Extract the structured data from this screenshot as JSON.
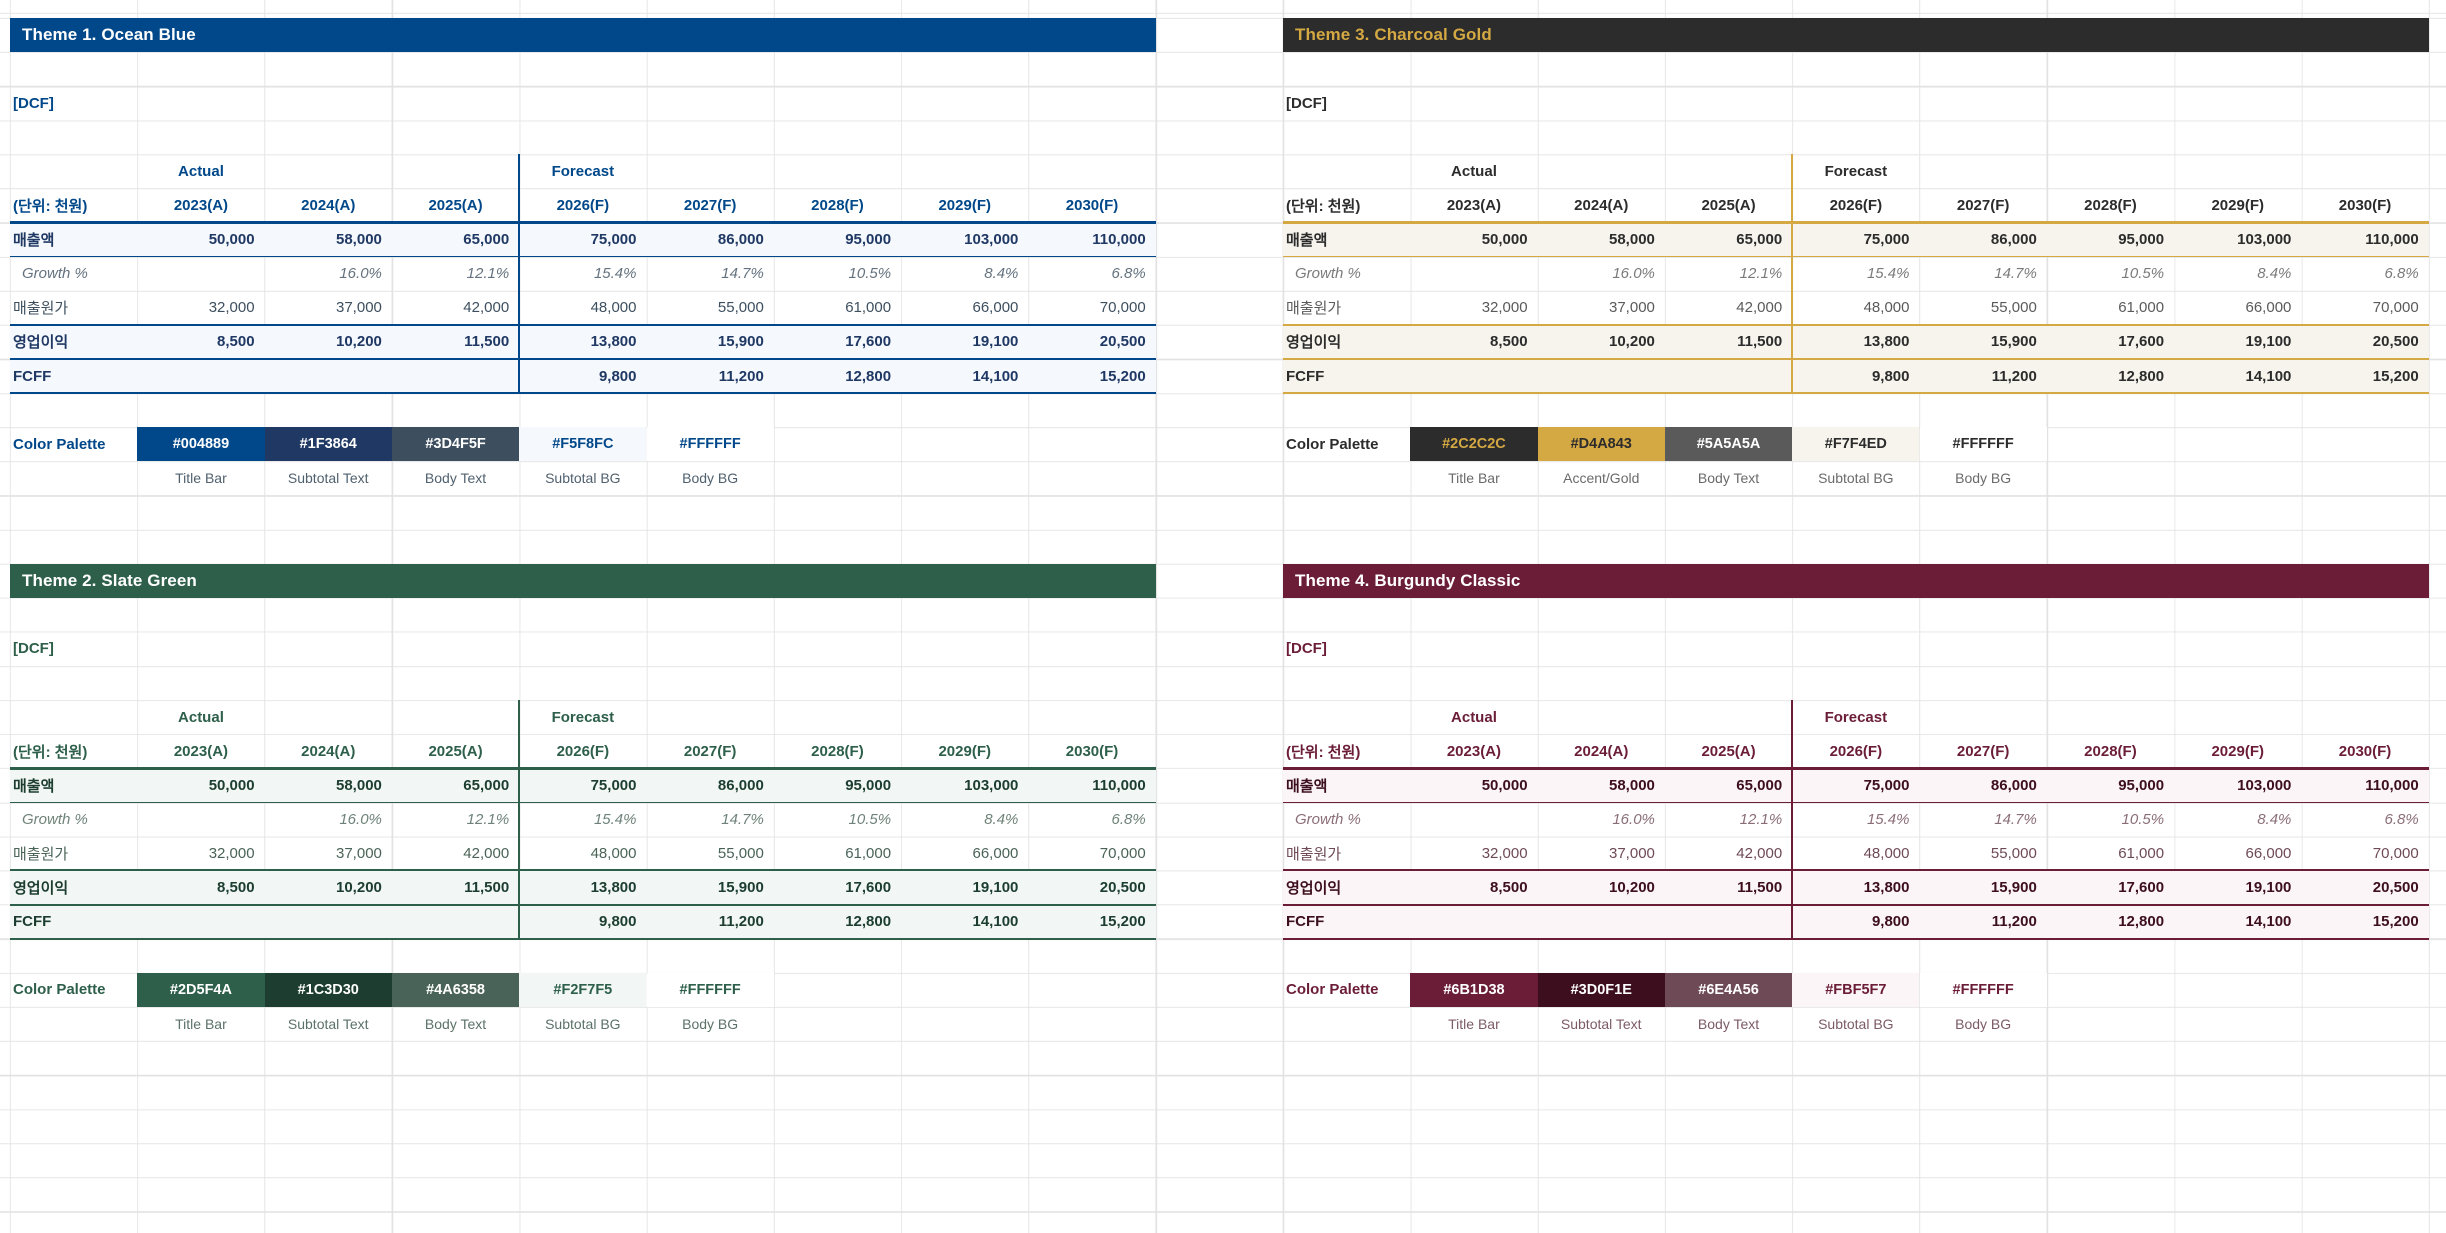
{
  "sheet": {
    "dcf_label": "[DCF]",
    "unit_label": "(단위: 천원)",
    "actual_label": "Actual",
    "forecast_label": "Forecast",
    "year_headers": [
      "2023(A)",
      "2024(A)",
      "2025(A)",
      "2026(F)",
      "2027(F)",
      "2028(F)",
      "2029(F)",
      "2030(F)"
    ],
    "rows": [
      {
        "label": "매출액",
        "type": "subtotal",
        "values": [
          "50,000",
          "58,000",
          "65,000",
          "75,000",
          "86,000",
          "95,000",
          "103,000",
          "110,000"
        ]
      },
      {
        "label": "Growth %",
        "type": "growth",
        "values": [
          "",
          "16.0%",
          "12.1%",
          "15.4%",
          "14.7%",
          "10.5%",
          "8.4%",
          "6.8%"
        ]
      },
      {
        "label": "매출원가",
        "type": "body",
        "values": [
          "32,000",
          "37,000",
          "42,000",
          "48,000",
          "55,000",
          "61,000",
          "66,000",
          "70,000"
        ]
      },
      {
        "label": "영업이익",
        "type": "subtotal",
        "values": [
          "8,500",
          "10,200",
          "11,500",
          "13,800",
          "15,900",
          "17,600",
          "19,100",
          "20,500"
        ]
      },
      {
        "label": "FCFF",
        "type": "subtotal",
        "values": [
          "",
          "",
          "",
          "9,800",
          "11,200",
          "12,800",
          "14,100",
          "15,200"
        ]
      }
    ],
    "palette_caption": "Color Palette"
  },
  "themes": [
    {
      "name": "Theme 1. Ocean Blue",
      "position": "top-left",
      "title_bg": "#004889",
      "title_fg": "#FFFFFF",
      "header_text": "#004889",
      "border": "#004889",
      "subtotal_text": "#1F3864",
      "body_text": "#3D4F5F",
      "subtotal_bg": "#F5F8FC",
      "body_bg": "#FFFFFF",
      "palette": [
        {
          "hex": "#004889",
          "label": "Title Bar",
          "swatch_bg": "#004889",
          "swatch_fg": "#FFFFFF"
        },
        {
          "hex": "#1F3864",
          "label": "Subtotal Text",
          "swatch_bg": "#1F3864",
          "swatch_fg": "#FFFFFF"
        },
        {
          "hex": "#3D4F5F",
          "label": "Body Text",
          "swatch_bg": "#3D4F5F",
          "swatch_fg": "#FFFFFF"
        },
        {
          "hex": "#F5F8FC",
          "label": "Subtotal BG",
          "swatch_bg": "#F5F8FC",
          "swatch_fg": "#004889"
        },
        {
          "hex": "#FFFFFF",
          "label": "Body BG",
          "swatch_bg": "#FFFFFF",
          "swatch_fg": "#004889"
        }
      ]
    },
    {
      "name": "Theme 2. Slate Green",
      "position": "bottom-left",
      "title_bg": "#2D5F4A",
      "title_fg": "#FFFFFF",
      "header_text": "#2D5F4A",
      "border": "#2D5F4A",
      "subtotal_text": "#1C3D30",
      "body_text": "#4A6358",
      "subtotal_bg": "#F2F7F5",
      "body_bg": "#FFFFFF",
      "palette": [
        {
          "hex": "#2D5F4A",
          "label": "Title Bar",
          "swatch_bg": "#2D5F4A",
          "swatch_fg": "#FFFFFF"
        },
        {
          "hex": "#1C3D30",
          "label": "Subtotal Text",
          "swatch_bg": "#1C3D30",
          "swatch_fg": "#FFFFFF"
        },
        {
          "hex": "#4A6358",
          "label": "Body Text",
          "swatch_bg": "#4A6358",
          "swatch_fg": "#FFFFFF"
        },
        {
          "hex": "#F2F7F5",
          "label": "Subtotal BG",
          "swatch_bg": "#F2F7F5",
          "swatch_fg": "#2D5F4A"
        },
        {
          "hex": "#FFFFFF",
          "label": "Body BG",
          "swatch_bg": "#FFFFFF",
          "swatch_fg": "#2D5F4A"
        }
      ]
    },
    {
      "name": "Theme 3. Charcoal Gold",
      "position": "top-right",
      "title_bg": "#2C2C2C",
      "title_fg": "#D4A843",
      "header_text": "#2C2C2C",
      "border": "#D4A843",
      "subtotal_text": "#2C2C2C",
      "body_text": "#5A5A5A",
      "subtotal_bg": "#F7F4ED",
      "body_bg": "#FFFFFF",
      "palette": [
        {
          "hex": "#2C2C2C",
          "label": "Title Bar",
          "swatch_bg": "#2C2C2C",
          "swatch_fg": "#D4A843"
        },
        {
          "hex": "#D4A843",
          "label": "Accent/Gold",
          "swatch_bg": "#D4A843",
          "swatch_fg": "#2C2C2C"
        },
        {
          "hex": "#5A5A5A",
          "label": "Body Text",
          "swatch_bg": "#5A5A5A",
          "swatch_fg": "#FFFFFF"
        },
        {
          "hex": "#F7F4ED",
          "label": "Subtotal BG",
          "swatch_bg": "#F7F4ED",
          "swatch_fg": "#2C2C2C"
        },
        {
          "hex": "#FFFFFF",
          "label": "Body BG",
          "swatch_bg": "#FFFFFF",
          "swatch_fg": "#2C2C2C"
        }
      ]
    },
    {
      "name": "Theme 4. Burgundy Classic",
      "position": "bottom-right",
      "title_bg": "#6B1D38",
      "title_fg": "#FFFFFF",
      "header_text": "#6B1D38",
      "border": "#6B1D38",
      "subtotal_text": "#3D0F1E",
      "body_text": "#6E4A56",
      "subtotal_bg": "#FBF5F7",
      "body_bg": "#FFFFFF",
      "palette": [
        {
          "hex": "#6B1D38",
          "label": "Title Bar",
          "swatch_bg": "#6B1D38",
          "swatch_fg": "#FFFFFF"
        },
        {
          "hex": "#3D0F1E",
          "label": "Subtotal Text",
          "swatch_bg": "#3D0F1E",
          "swatch_fg": "#FFFFFF"
        },
        {
          "hex": "#6E4A56",
          "label": "Body Text",
          "swatch_bg": "#6E4A56",
          "swatch_fg": "#FFFFFF"
        },
        {
          "hex": "#FBF5F7",
          "label": "Subtotal BG",
          "swatch_bg": "#FBF5F7",
          "swatch_fg": "#6B1D38"
        },
        {
          "hex": "#FFFFFF",
          "label": "Body BG",
          "swatch_bg": "#FFFFFF",
          "swatch_fg": "#6B1D38"
        }
      ]
    }
  ],
  "grid": {
    "gridline_color": "#E2E2E2"
  }
}
